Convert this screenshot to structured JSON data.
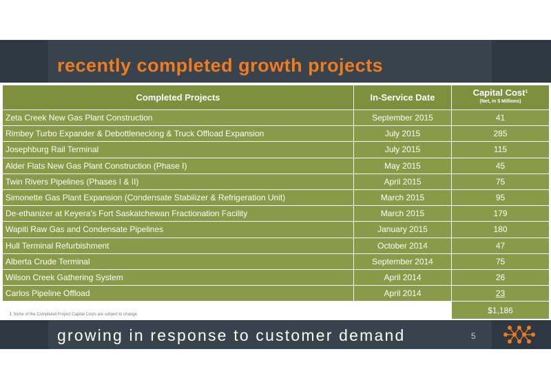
{
  "title": "recently completed growth projects",
  "table": {
    "headers": {
      "project": "Completed Projects",
      "date": "In-Service Date",
      "cost": "Capital Cost",
      "cost_sup": "1",
      "cost_sub": "(Net, in $ Millions)"
    },
    "rows": [
      {
        "project": "Zeta Creek New Gas Plant Construction",
        "date": "September 2015",
        "cost": "41"
      },
      {
        "project": "Rimbey Turbo Expander & Debottlenecking & Truck Offload Expansion",
        "date": "July 2015",
        "cost": "285"
      },
      {
        "project": "Josephburg Rail Terminal",
        "date": "July 2015",
        "cost": "115"
      },
      {
        "project": "Alder Flats New Gas Plant Construction (Phase I)",
        "date": "May 2015",
        "cost": "45"
      },
      {
        "project": "Twin Rivers Pipelines (Phases I & II)",
        "date": "April 2015",
        "cost": "75"
      },
      {
        "project": "Simonette Gas Plant Expansion (Condensate Stabilizer & Refrigeration Unit)",
        "date": "March 2015",
        "cost": "95"
      },
      {
        "project": "De-ethanizer at Keyera’s Fort Saskatchewan Fractionation Facility",
        "date": "March 2015",
        "cost": "179"
      },
      {
        "project": "Wapiti Raw Gas and Condensate Pipelines",
        "date": "January 2015",
        "cost": "180"
      },
      {
        "project": "Hull Terminal Refurbishment",
        "date": "October 2014",
        "cost": "47"
      },
      {
        "project": "Alberta Crude Terminal",
        "date": "September 2014",
        "cost": "75"
      },
      {
        "project": "Wilson Creek Gathering System",
        "date": "April 2014",
        "cost": "26"
      },
      {
        "project": "Carlos Pipeline Offload",
        "date": "April 2014",
        "cost": "23"
      }
    ],
    "total": "$1,186",
    "footnote_sup": "1",
    "footnote": "Some of the Completed Project Capital Costs are subject to change."
  },
  "footer": {
    "tagline": "growing in response to customer demand",
    "page_number": "5"
  },
  "colors": {
    "accent": "#f07c1e",
    "band": "#2e3842",
    "table_green": "#8a9a48",
    "header_green": "#7f8f3e"
  }
}
